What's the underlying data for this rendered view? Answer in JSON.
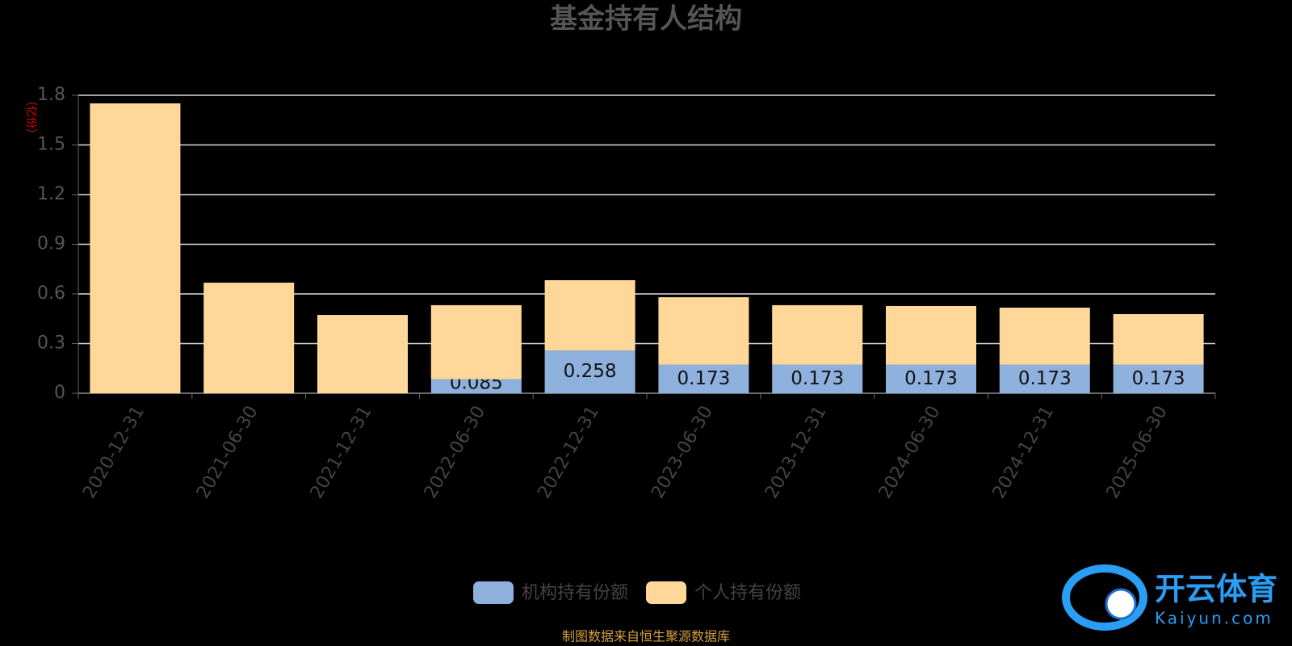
{
  "chart_data": {
    "type": "bar",
    "stacked": true,
    "title": "基金持有人结构",
    "y_label": "（亿份）",
    "categories": [
      "2020-12-31",
      "2021-06-30",
      "2021-12-31",
      "2022-06-30",
      "2022-12-31",
      "2023-06-30",
      "2023-12-31",
      "2024-06-30",
      "2024-12-31",
      "2025-06-30"
    ],
    "series": [
      {
        "name": "机构持有份额",
        "color": "#8eb0dd",
        "values": [
          null,
          null,
          null,
          0.085,
          0.258,
          0.173,
          0.173,
          0.173,
          0.173,
          0.173
        ],
        "show_labels": true
      },
      {
        "name": "个人持有份额",
        "color": "#ffd899",
        "values": [
          1.751,
          0.668,
          0.473,
          0.447,
          0.425,
          0.407,
          0.359,
          0.354,
          0.344,
          0.305
        ],
        "show_labels": false
      }
    ],
    "ylim": [
      0,
      1.8
    ],
    "yticks": [
      0,
      0.3,
      0.6,
      0.9,
      1.2,
      1.5,
      1.8
    ],
    "grid": true,
    "legend": "bottom",
    "source": "制图数据来自恒生聚源数据库",
    "watermark": {
      "name": "开云体育",
      "url": "Kaiyun.com"
    }
  }
}
